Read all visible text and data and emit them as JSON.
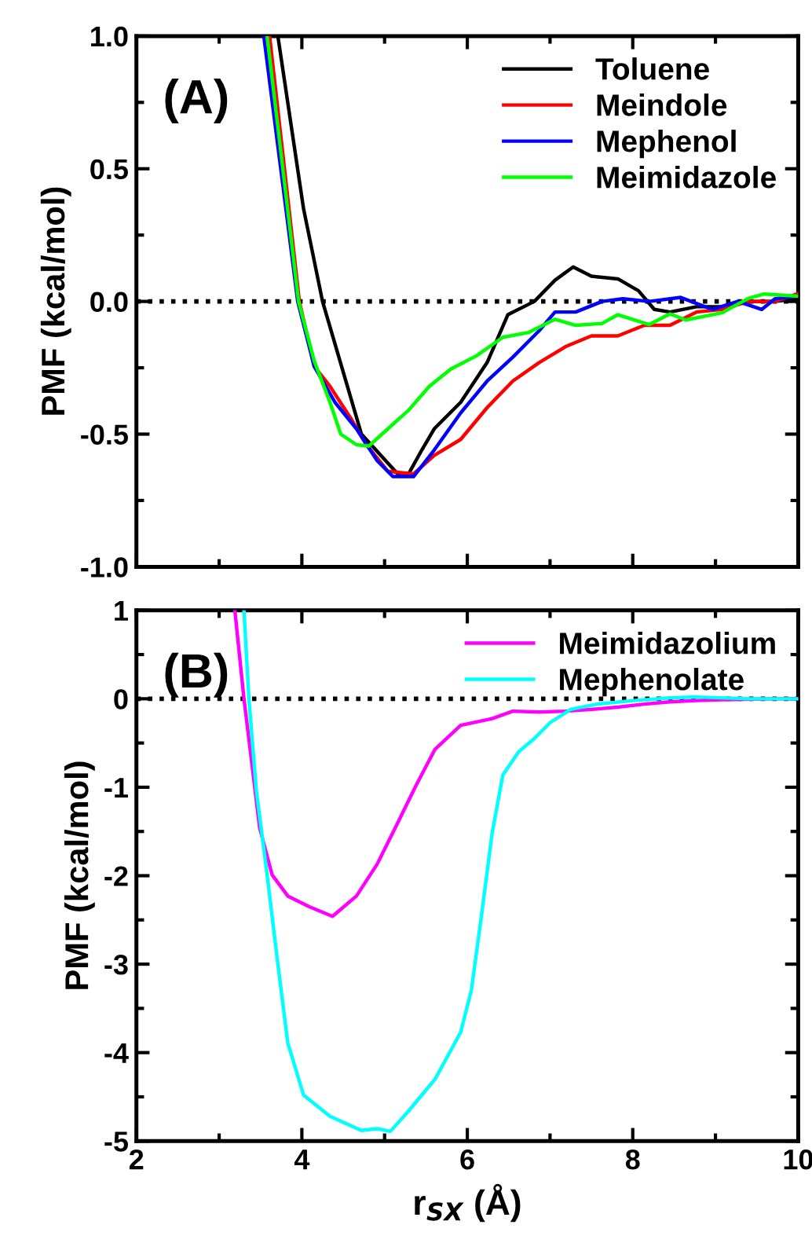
{
  "chart_data": [
    {
      "type": "line",
      "ylabel": "PMF (kcal/mol)",
      "annotations": [
        "(A)"
      ],
      "legend": "top right",
      "grid": false,
      "marker": "none",
      "line_style": "solid",
      "tick_labels": "y",
      "xlim": [
        2,
        10
      ],
      "ylim": [
        -1,
        1
      ],
      "xticks": [
        2,
        {
          "value": 3,
          "label": null
        },
        4,
        {
          "value": 5,
          "label": null
        },
        6,
        {
          "value": 7,
          "label": null
        },
        8,
        {
          "value": 9,
          "label": null
        },
        10
      ],
      "yticks": [
        {
          "value": -1,
          "label": "-1.0"
        },
        {
          "value": -0.75,
          "label": null
        },
        {
          "value": -0.5,
          "label": "-0.5"
        },
        {
          "value": -0.25,
          "label": null
        },
        {
          "value": 0,
          "label": "0.0"
        },
        {
          "value": 0.25,
          "label": null
        },
        {
          "value": 0.5,
          "label": "0.5"
        },
        {
          "value": 0.75,
          "label": null
        },
        {
          "value": 1,
          "label": "1.0"
        }
      ],
      "ref_lines": [
        {
          "axis": "y",
          "value": 0,
          "color": "#000000",
          "line_style": "dotted"
        }
      ],
      "series": [
        {
          "name": "Toluene",
          "color": "#000000",
          "x": [
            3.71,
            4.02,
            4.25,
            4.72,
            5.16,
            5.29,
            5.45,
            5.6,
            5.92,
            6.24,
            6.49,
            6.81,
            7.06,
            7.28,
            7.5,
            7.82,
            8.07,
            8.26,
            8.45,
            8.77,
            9.08,
            9.4,
            9.72,
            10
          ],
          "values": [
            1,
            0.35,
            0,
            -0.5,
            -0.65,
            -0.65,
            -0.56,
            -0.48,
            -0.38,
            -0.23,
            -0.05,
            0,
            0.08,
            0.13,
            0.095,
            0.085,
            0.04,
            -0.03,
            -0.04,
            -0.02,
            -0.02,
            0,
            0,
            0.01
          ]
        },
        {
          "name": "Meindole",
          "color": "#ff0000",
          "x": [
            3.61,
            3.97,
            4.15,
            4.34,
            4.59,
            4.78,
            5.04,
            5.35,
            5.6,
            5.92,
            6.24,
            6.55,
            6.87,
            7.19,
            7.5,
            7.82,
            8.14,
            8.45,
            8.77,
            9.08,
            9.4,
            9.72,
            10
          ],
          "values": [
            1,
            0,
            -0.245,
            -0.32,
            -0.44,
            -0.54,
            -0.64,
            -0.65,
            -0.58,
            -0.52,
            -0.4,
            -0.3,
            -0.23,
            -0.17,
            -0.13,
            -0.13,
            -0.09,
            -0.09,
            -0.04,
            -0.03,
            0,
            0,
            0.03
          ]
        },
        {
          "name": "Mephenol",
          "color": "#0000ff",
          "x": [
            3.54,
            3.95,
            4.15,
            4.4,
            4.66,
            4.91,
            5.1,
            5.35,
            5.6,
            5.92,
            6.24,
            6.55,
            6.87,
            7.06,
            7.31,
            7.63,
            7.88,
            8.2,
            8.58,
            8.96,
            9.27,
            9.56,
            9.72,
            10
          ],
          "values": [
            1,
            0,
            -0.245,
            -0.38,
            -0.48,
            -0.6,
            -0.66,
            -0.66,
            -0.56,
            -0.42,
            -0.3,
            -0.21,
            -0.11,
            -0.04,
            -0.04,
            0,
            0.01,
            0,
            0.015,
            -0.03,
            0,
            -0.03,
            0.01,
            0.02
          ]
        },
        {
          "name": "Meimidazole",
          "color": "#00ff00",
          "x": [
            3.58,
            3.96,
            4.15,
            4.34,
            4.47,
            4.66,
            4.81,
            5.04,
            5.29,
            5.54,
            5.8,
            6.11,
            6.43,
            6.74,
            7.06,
            7.31,
            7.63,
            7.82,
            8.2,
            8.45,
            8.64,
            9.08,
            9.4,
            9.59,
            10
          ],
          "values": [
            1,
            0,
            -0.225,
            -0.38,
            -0.5,
            -0.54,
            -0.545,
            -0.48,
            -0.41,
            -0.32,
            -0.255,
            -0.205,
            -0.135,
            -0.117,
            -0.067,
            -0.09,
            -0.083,
            -0.05,
            -0.087,
            -0.047,
            -0.07,
            -0.043,
            0.012,
            0.028,
            0.02
          ]
        }
      ]
    },
    {
      "type": "line",
      "ylabel": "PMF (kcal/mol)",
      "xlabel": "r$_{SX}$ (Å)",
      "annotations": [
        "(B)"
      ],
      "legend": "top right",
      "grid": false,
      "marker": "none",
      "line_style": "solid",
      "xlim": [
        2,
        10
      ],
      "ylim": [
        -5,
        1
      ],
      "xticks": [
        2,
        {
          "value": 3,
          "label": null
        },
        4,
        {
          "value": 5,
          "label": null
        },
        6,
        {
          "value": 7,
          "label": null
        },
        8,
        {
          "value": 9,
          "label": null
        },
        10
      ],
      "yticks": [
        -5,
        {
          "value": -4.5,
          "label": null
        },
        -4,
        {
          "value": -3.5,
          "label": null
        },
        -3,
        {
          "value": -2.5,
          "label": null
        },
        -2,
        {
          "value": -1.5,
          "label": null
        },
        -1,
        {
          "value": -0.5,
          "label": null
        },
        0,
        {
          "value": 0.5,
          "label": null
        },
        1
      ],
      "ref_lines": [
        {
          "axis": "y",
          "value": 0,
          "color": "#000000",
          "line_style": "dotted"
        }
      ],
      "series": [
        {
          "name": "Meimidazolium",
          "color": "#ff00ff",
          "x": [
            3.19,
            3.3,
            3.39,
            3.49,
            3.64,
            3.83,
            4.09,
            4.37,
            4.66,
            4.91,
            5.16,
            5.38,
            5.61,
            5.92,
            6.3,
            6.55,
            6.87,
            7.19,
            7.5,
            7.82,
            8.14,
            8.45,
            8.77,
            9.08,
            9.72,
            10
          ],
          "values": [
            1,
            0,
            -0.69,
            -1.46,
            -1.99,
            -2.23,
            -2.35,
            -2.46,
            -2.23,
            -1.87,
            -1.4,
            -0.98,
            -0.57,
            -0.3,
            -0.225,
            -0.14,
            -0.15,
            -0.14,
            -0.12,
            -0.095,
            -0.06,
            -0.035,
            -0.02,
            -0.01,
            0,
            0
          ]
        },
        {
          "name": "Mephenolate",
          "color": "#00ffff",
          "x": [
            3.3,
            3.36,
            3.45,
            3.58,
            3.71,
            3.83,
            4.02,
            4.34,
            4.72,
            4.91,
            5.07,
            5.29,
            5.61,
            5.92,
            6.05,
            6.17,
            6.3,
            6.43,
            6.62,
            6.81,
            7.0,
            7.25,
            7.57,
            8.01,
            8.45,
            8.77,
            9.4,
            10
          ],
          "values": [
            1,
            0,
            -1.04,
            -1.99,
            -3.0,
            -3.89,
            -4.48,
            -4.72,
            -4.88,
            -4.86,
            -4.89,
            -4.66,
            -4.3,
            -3.77,
            -3.29,
            -2.46,
            -1.52,
            -0.86,
            -0.6,
            -0.45,
            -0.27,
            -0.12,
            -0.06,
            -0.02,
            0.01,
            0.02,
            0,
            0
          ]
        }
      ]
    }
  ]
}
